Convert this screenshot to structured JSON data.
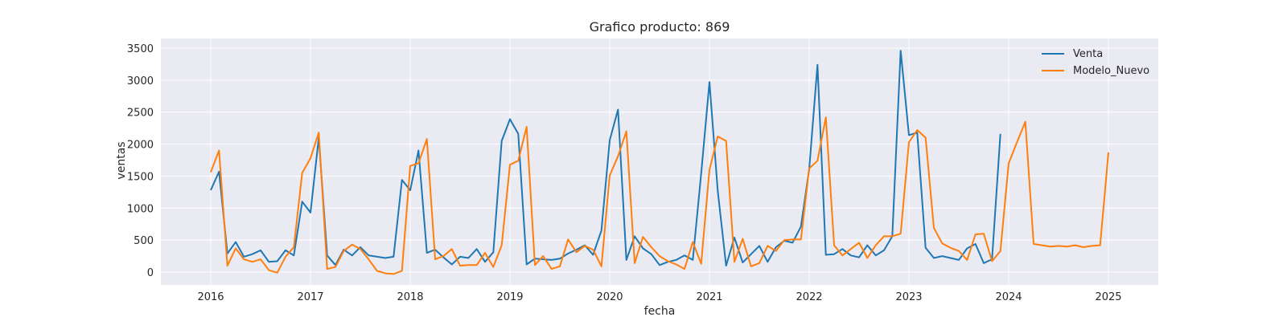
{
  "chart_data": {
    "type": "line",
    "title": "Grafico producto: 869",
    "xlabel": "fecha",
    "ylabel": "ventas",
    "ylim": [
      -200,
      3650
    ],
    "xlim": [
      "2015-07-01",
      "2025-07-01"
    ],
    "xticks": [
      "2016",
      "2017",
      "2018",
      "2019",
      "2020",
      "2021",
      "2022",
      "2023",
      "2024",
      "2025"
    ],
    "yticks": [
      0,
      500,
      1000,
      1500,
      2000,
      2500,
      3000,
      3500
    ],
    "grid": true,
    "legend_position": "top-right",
    "colors": {
      "plot_background": "#eaeaf2",
      "Venta": "#1f77b4",
      "Modelo_Nuevo": "#ff7f0e"
    },
    "series": [
      {
        "name": "Venta",
        "start": "2016-01",
        "values": [
          1280,
          1570,
          290,
          470,
          240,
          280,
          340,
          160,
          170,
          340,
          260,
          1100,
          930,
          2100,
          260,
          110,
          350,
          260,
          390,
          260,
          240,
          220,
          240,
          1440,
          1280,
          1900,
          300,
          350,
          230,
          120,
          240,
          220,
          360,
          160,
          310,
          2050,
          2390,
          2160,
          120,
          210,
          200,
          190,
          210,
          290,
          350,
          420,
          270,
          650,
          2060,
          2540,
          190,
          560,
          370,
          280,
          110,
          160,
          190,
          260,
          190,
          1540,
          2970,
          1270,
          100,
          540,
          150,
          280,
          410,
          160,
          390,
          490,
          460,
          710,
          1610,
          3240,
          270,
          280,
          360,
          260,
          230,
          420,
          260,
          340,
          560,
          3460,
          2140,
          2180,
          380,
          220,
          250,
          220,
          190,
          370,
          440,
          140,
          200,
          2160
        ]
      },
      {
        "name": "Modelo_Nuevo",
        "start": "2016-01",
        "values": [
          1560,
          1900,
          100,
          370,
          200,
          160,
          200,
          30,
          -10,
          240,
          390,
          1550,
          1780,
          2180,
          50,
          80,
          330,
          430,
          360,
          200,
          20,
          -20,
          -30,
          20,
          1660,
          1700,
          2080,
          200,
          250,
          360,
          100,
          110,
          110,
          300,
          80,
          420,
          1680,
          1740,
          2270,
          110,
          250,
          50,
          90,
          510,
          310,
          410,
          350,
          90,
          1510,
          1810,
          2200,
          140,
          550,
          390,
          250,
          170,
          120,
          50,
          470,
          130,
          1600,
          2120,
          2050,
          160,
          520,
          90,
          140,
          410,
          330,
          500,
          510,
          510,
          1620,
          1740,
          2420,
          420,
          260,
          360,
          460,
          220,
          420,
          560,
          560,
          600,
          2030,
          2220,
          2100,
          690,
          450,
          380,
          330,
          190,
          590,
          600,
          170,
          330,
          1700,
          2030,
          2350,
          440,
          420,
          400,
          410,
          400,
          420,
          390,
          410,
          420,
          1870
        ]
      }
    ]
  }
}
